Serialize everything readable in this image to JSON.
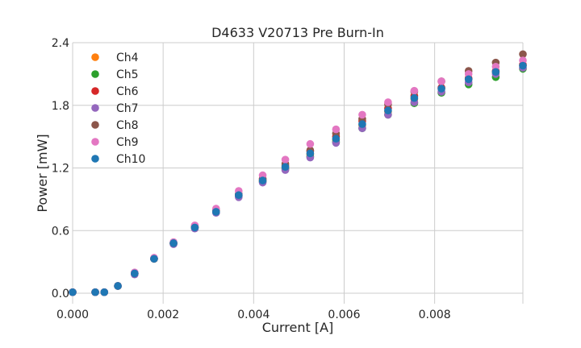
{
  "chart_data": {
    "type": "scatter",
    "title": "D4633 V20713 Pre Burn-In",
    "xlabel": "Current [A]",
    "ylabel": "Power [mW]",
    "xlim": [
      0,
      0.00995
    ],
    "ylim": [
      -0.1,
      2.4
    ],
    "xticks": [
      "0.000",
      "0.002",
      "0.004",
      "0.006",
      "0.008"
    ],
    "yticks": [
      "0.0",
      "0.6",
      "1.2",
      "1.8",
      "2.4"
    ],
    "grid": true,
    "legend_position": "top-left",
    "x": [
      0.0,
      0.0005,
      0.0007,
      0.001,
      0.00137,
      0.0018,
      0.00223,
      0.0027,
      0.00317,
      0.00367,
      0.0042,
      0.0047,
      0.00525,
      0.00582,
      0.0064,
      0.00697,
      0.00755,
      0.00815,
      0.00875,
      0.00935,
      0.00995
    ],
    "series": [
      {
        "name": "Ch4",
        "color": "#ff7f0e",
        "values": [
          0.01,
          0.01,
          0.01,
          0.07,
          0.19,
          0.33,
          0.48,
          0.63,
          0.78,
          0.94,
          1.08,
          1.2,
          1.33,
          1.47,
          1.61,
          1.74,
          1.86,
          1.96,
          2.05,
          2.12,
          2.18
        ]
      },
      {
        "name": "Ch5",
        "color": "#2ca02c",
        "values": [
          0.01,
          0.01,
          0.01,
          0.07,
          0.19,
          0.33,
          0.48,
          0.63,
          0.78,
          0.93,
          1.07,
          1.19,
          1.31,
          1.45,
          1.58,
          1.71,
          1.82,
          1.92,
          2.0,
          2.07,
          2.15
        ]
      },
      {
        "name": "Ch6",
        "color": "#d62728",
        "values": [
          0.01,
          0.01,
          0.01,
          0.07,
          0.19,
          0.33,
          0.48,
          0.63,
          0.78,
          0.94,
          1.09,
          1.22,
          1.36,
          1.5,
          1.65,
          1.77,
          1.89,
          1.97,
          2.06,
          2.13,
          2.19
        ]
      },
      {
        "name": "Ch7",
        "color": "#9467bd",
        "values": [
          0.01,
          0.01,
          0.01,
          0.07,
          0.18,
          0.33,
          0.47,
          0.62,
          0.77,
          0.92,
          1.06,
          1.18,
          1.3,
          1.44,
          1.58,
          1.71,
          1.83,
          1.93,
          2.02,
          2.1,
          2.16
        ]
      },
      {
        "name": "Ch8",
        "color": "#8c564b",
        "values": [
          0.01,
          0.01,
          0.01,
          0.07,
          0.19,
          0.33,
          0.48,
          0.64,
          0.79,
          0.95,
          1.1,
          1.24,
          1.37,
          1.53,
          1.67,
          1.81,
          1.93,
          2.03,
          2.13,
          2.21,
          2.29
        ]
      },
      {
        "name": "Ch9",
        "color": "#e377c2",
        "values": [
          0.01,
          0.01,
          0.01,
          0.07,
          0.2,
          0.34,
          0.49,
          0.65,
          0.81,
          0.98,
          1.13,
          1.28,
          1.43,
          1.57,
          1.71,
          1.83,
          1.94,
          2.03,
          2.1,
          2.17,
          2.23
        ]
      },
      {
        "name": "Ch10",
        "color": "#1f77b4",
        "values": [
          0.01,
          0.01,
          0.01,
          0.07,
          0.19,
          0.33,
          0.48,
          0.63,
          0.78,
          0.94,
          1.08,
          1.21,
          1.34,
          1.48,
          1.62,
          1.75,
          1.87,
          1.96,
          2.05,
          2.12,
          2.18
        ]
      }
    ]
  }
}
